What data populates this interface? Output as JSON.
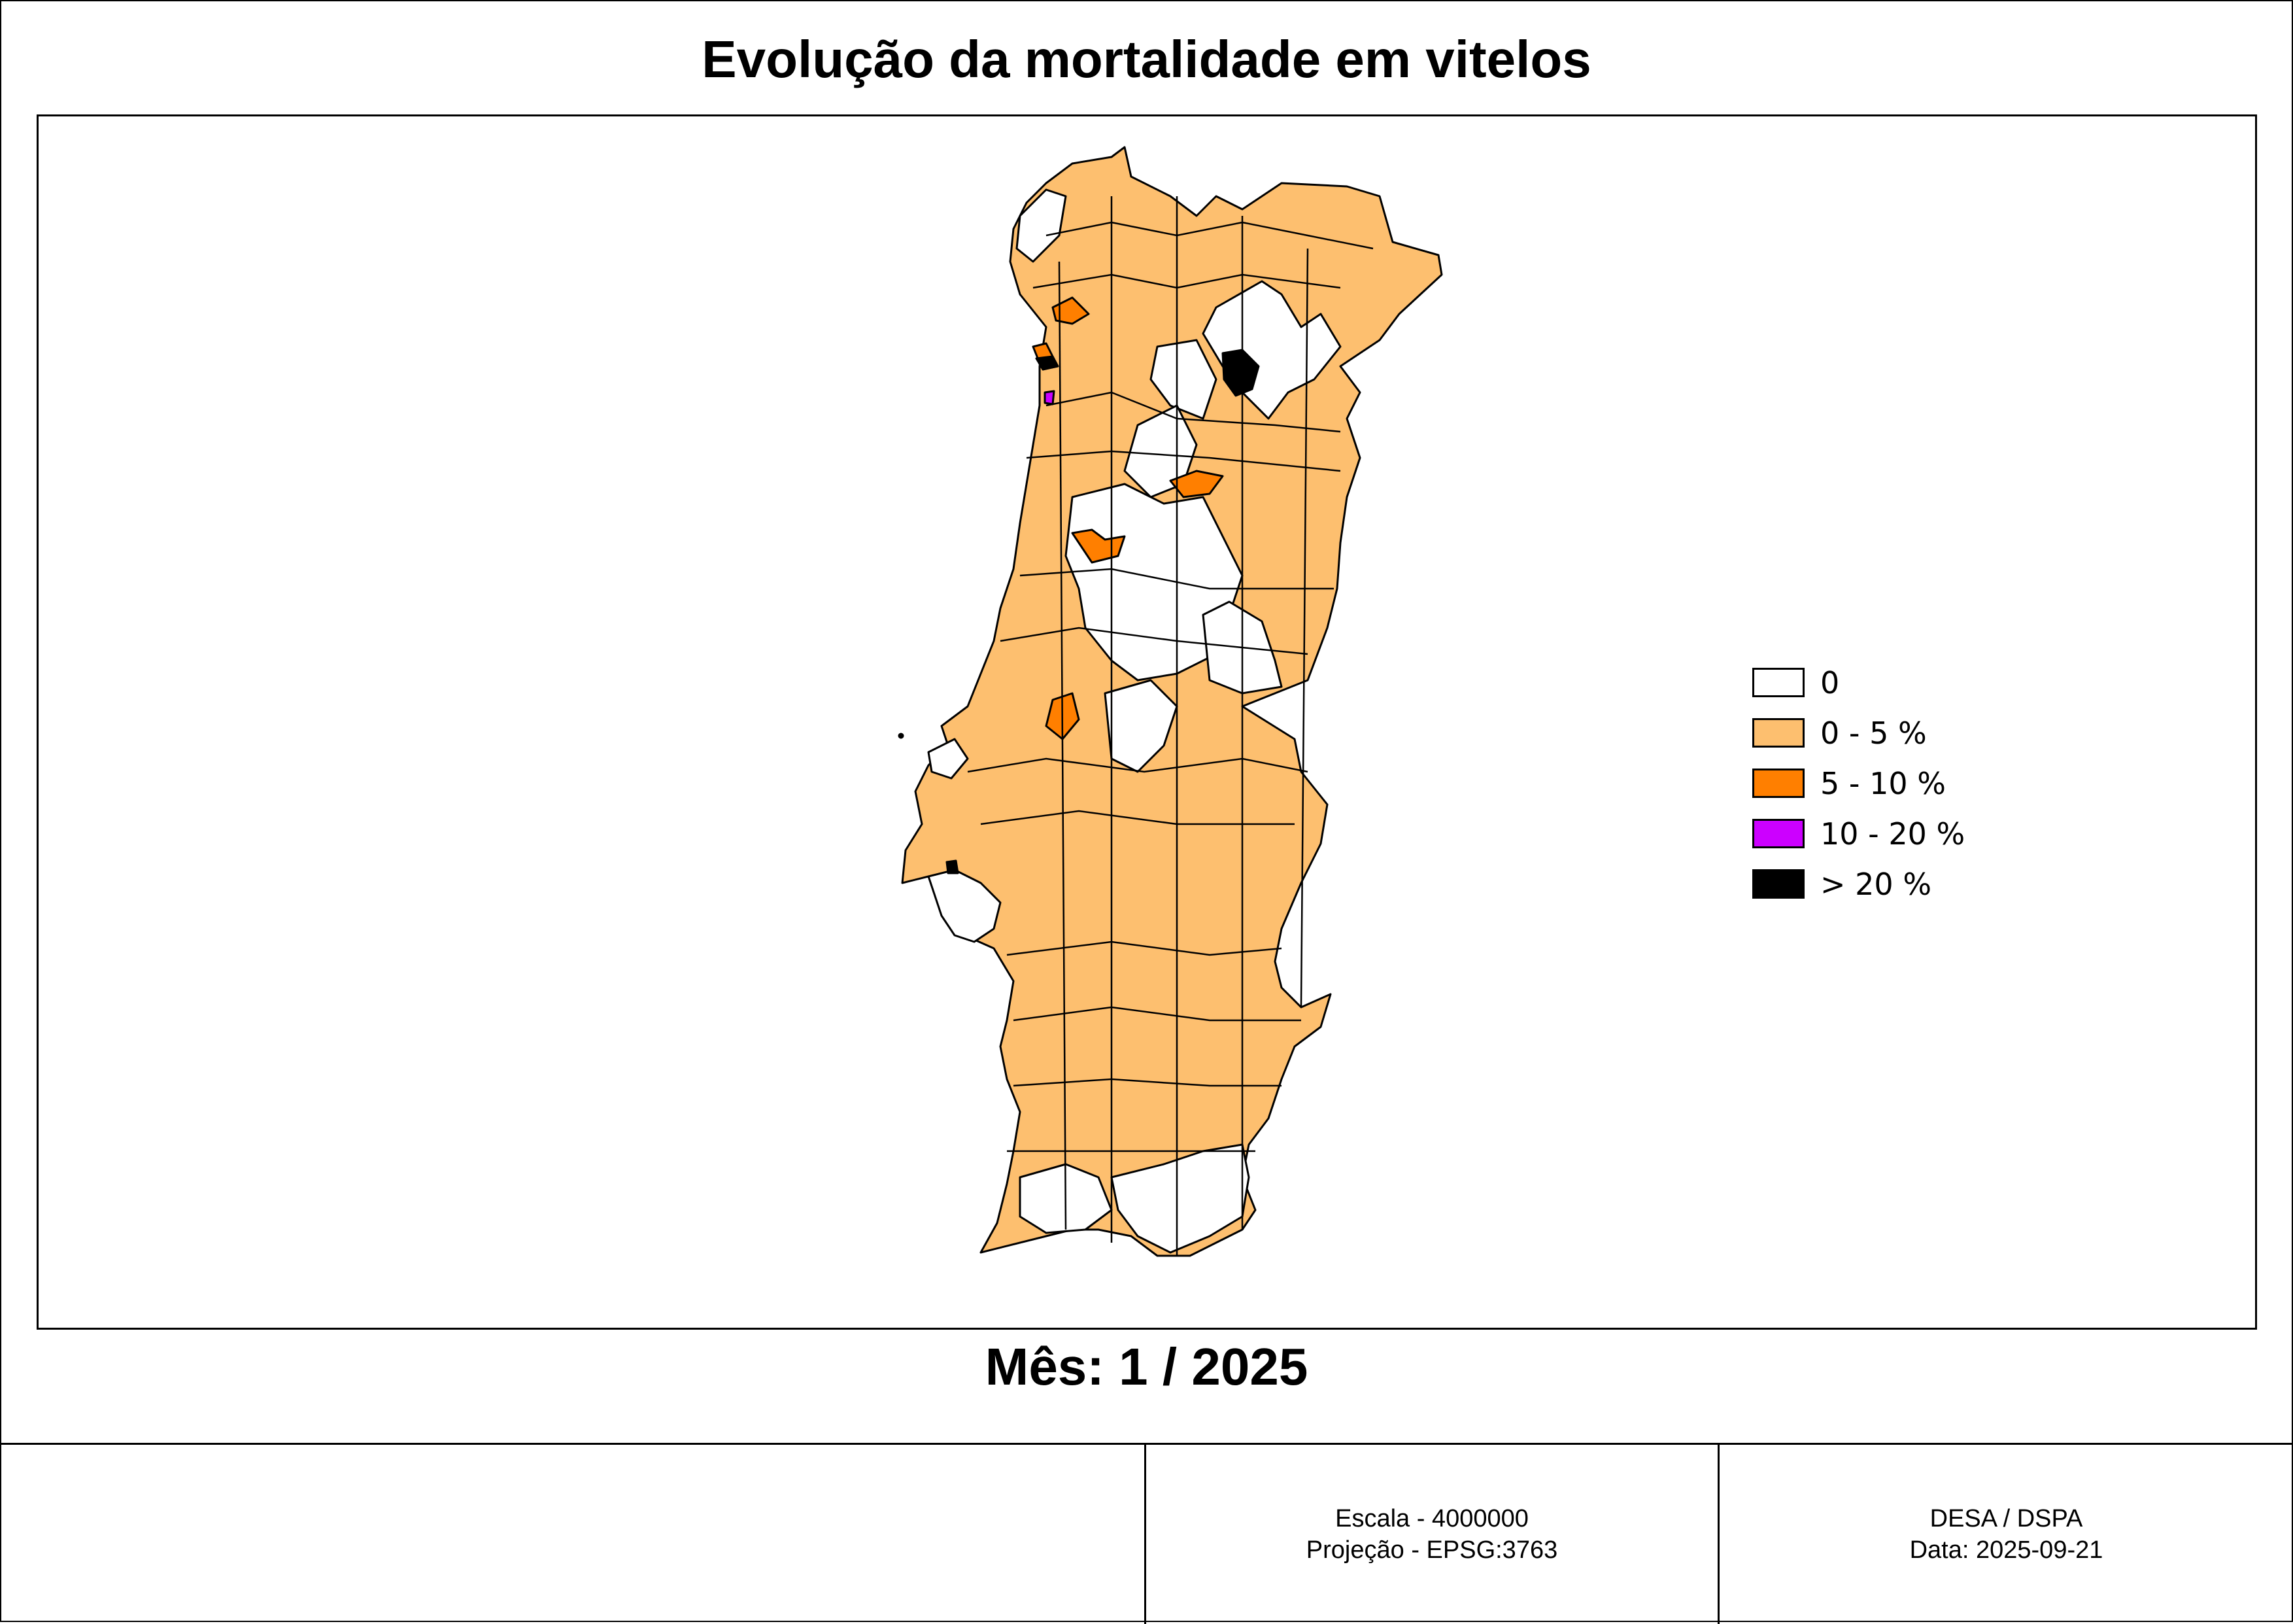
{
  "title": "Evolução da mortalidade em vitelos",
  "subtitle": "Mês: 1 / 2025",
  "legend": {
    "items": [
      {
        "label": "0",
        "color": "#ffffff"
      },
      {
        "label": "0 - 5 %",
        "color": "#fdbf6f"
      },
      {
        "label": "5 - 10 %",
        "color": "#ff7f00"
      },
      {
        "label": "10 - 20 %",
        "color": "#cc00ff"
      },
      {
        "label": "> 20 %",
        "color": "#000000"
      }
    ]
  },
  "footer": {
    "left": "",
    "scale": "Escala - 4000000",
    "projection": "Projeção - EPSG:3763",
    "organization": "DESA / DSPA",
    "date": "Data: 2025-09-21"
  },
  "colors": {
    "border": "#000000",
    "background": "#ffffff"
  }
}
